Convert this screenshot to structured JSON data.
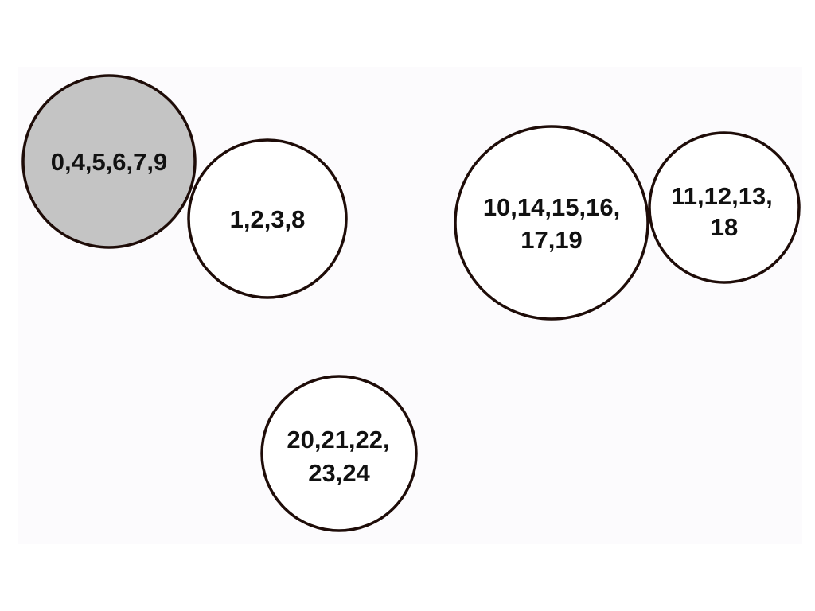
{
  "diagram": {
    "nodes": [
      {
        "id": "group-a",
        "lines": [
          "0,4,5,6,7,9"
        ],
        "fill": "#c4c4c4"
      },
      {
        "id": "group-b",
        "lines": [
          "1,2,3,8"
        ],
        "fill": "#ffffff"
      },
      {
        "id": "group-c",
        "lines": [
          "10,14,15,16,",
          "17,19"
        ],
        "fill": "#ffffff"
      },
      {
        "id": "group-d",
        "lines": [
          "11,12,13,",
          "18"
        ],
        "fill": "#ffffff"
      },
      {
        "id": "group-e",
        "lines": [
          "20,21,22,",
          "23,24"
        ],
        "fill": "#ffffff"
      }
    ]
  }
}
